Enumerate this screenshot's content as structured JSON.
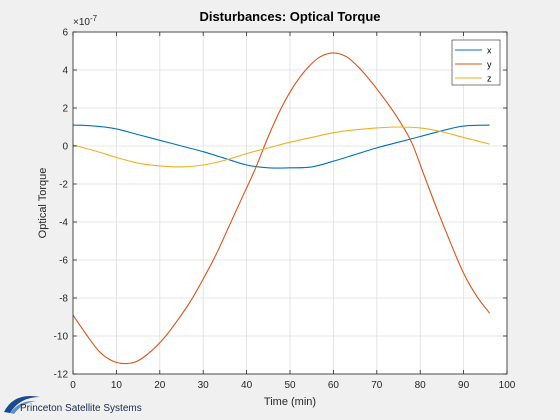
{
  "chart_data": {
    "type": "line",
    "title": "Disturbances: Optical Torque",
    "xlabel": "Time (min)",
    "ylabel": "Optical Torque",
    "exponent_label": "×10",
    "exponent_power": "-7",
    "xlim": [
      0,
      100
    ],
    "ylim": [
      -12,
      6
    ],
    "xticks": [
      0,
      10,
      20,
      30,
      40,
      50,
      60,
      70,
      80,
      90,
      100
    ],
    "yticks": [
      -12,
      -10,
      -8,
      -6,
      -4,
      -2,
      0,
      2,
      4,
      6
    ],
    "grid": true,
    "legend_position": "top-right",
    "series": [
      {
        "name": "x",
        "color": "#0072bd",
        "x": [
          0,
          5,
          10,
          15,
          20,
          25,
          30,
          35,
          40,
          45,
          50,
          55,
          60,
          65,
          70,
          75,
          80,
          85,
          90,
          96
        ],
        "y": [
          1.1,
          1.05,
          0.9,
          0.6,
          0.3,
          0.0,
          -0.3,
          -0.65,
          -1.0,
          -1.15,
          -1.15,
          -1.1,
          -0.8,
          -0.45,
          -0.1,
          0.2,
          0.5,
          0.8,
          1.05,
          1.1
        ]
      },
      {
        "name": "y",
        "color": "#d95319",
        "x": [
          0,
          3,
          6,
          9,
          12,
          15,
          18,
          21,
          24,
          27,
          30,
          33,
          36,
          39,
          42,
          45,
          48,
          51,
          54,
          57,
          60,
          63,
          66,
          69,
          72,
          75,
          78,
          81,
          84,
          87,
          90,
          93,
          96
        ],
        "y": [
          -8.9,
          -9.9,
          -10.8,
          -11.3,
          -11.45,
          -11.3,
          -10.8,
          -10.1,
          -9.2,
          -8.2,
          -7.0,
          -5.7,
          -4.2,
          -2.7,
          -1.2,
          0.5,
          2.0,
          3.2,
          4.1,
          4.7,
          4.9,
          4.7,
          4.1,
          3.3,
          2.4,
          1.4,
          0.2,
          -1.6,
          -3.4,
          -5.1,
          -6.7,
          -7.9,
          -8.8
        ]
      },
      {
        "name": "z",
        "color": "#edb120",
        "x": [
          0,
          5,
          10,
          15,
          20,
          25,
          30,
          35,
          40,
          45,
          50,
          55,
          60,
          65,
          70,
          75,
          80,
          85,
          90,
          96
        ],
        "y": [
          0.05,
          -0.25,
          -0.6,
          -0.9,
          -1.05,
          -1.1,
          -1.0,
          -0.75,
          -0.4,
          -0.1,
          0.2,
          0.45,
          0.7,
          0.85,
          0.95,
          1.0,
          0.95,
          0.75,
          0.45,
          0.1
        ]
      }
    ]
  },
  "branding": {
    "company": "Princeton Satellite Systems",
    "logo_color": "#1a4b8c"
  }
}
